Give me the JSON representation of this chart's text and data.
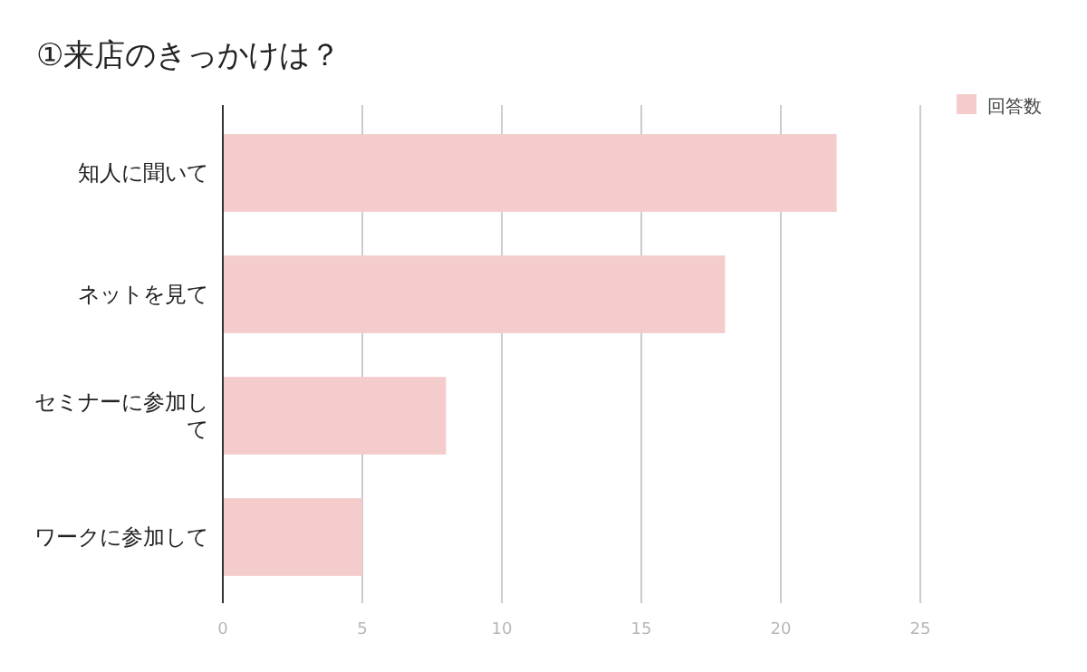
{
  "chart_data": {
    "type": "bar",
    "orientation": "horizontal",
    "title": "①来店のきっかけは？",
    "categories": [
      "知人に聞いて",
      "ネットを見て",
      "セミナーに参加して",
      "ワークに参加して"
    ],
    "series": [
      {
        "name": "回答数",
        "color": "#f4cccc",
        "values": [
          22,
          18,
          8,
          5
        ]
      }
    ],
    "xlim": [
      0,
      25
    ],
    "xticks": [
      0,
      5,
      10,
      15,
      20,
      25
    ],
    "grid": "x",
    "legend": "top right"
  }
}
